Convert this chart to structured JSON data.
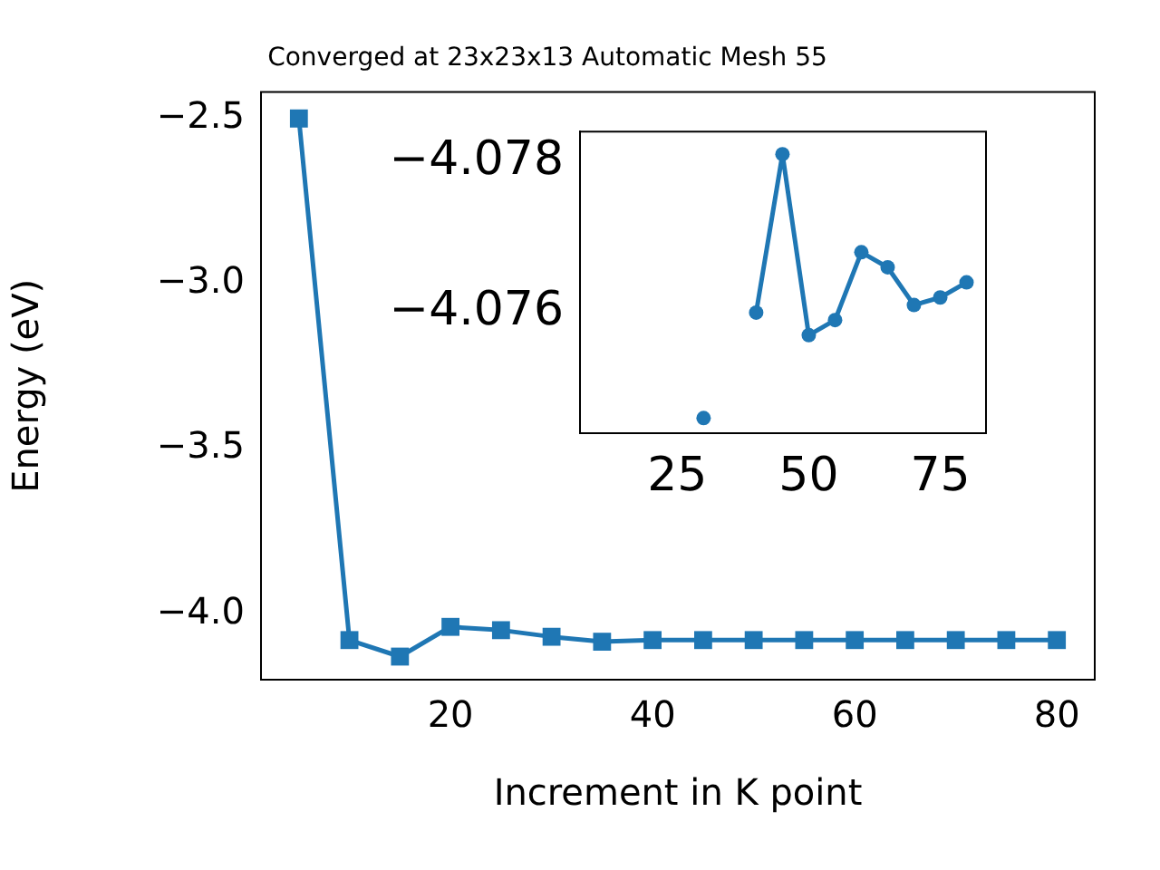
{
  "chart_data": [
    {
      "type": "line",
      "title": "Converged at 23x23x13 Automatic Mesh 55",
      "xlabel": "Increment in K point",
      "ylabel": "Energy (eV)",
      "x": [
        5,
        10,
        15,
        20,
        25,
        30,
        35,
        40,
        45,
        50,
        55,
        60,
        65,
        70,
        75,
        80
      ],
      "series": [
        {
          "color": "#1f77b4",
          "values": [
            -2.5,
            -4.08,
            -4.13,
            -4.04,
            -4.05,
            -4.07,
            -4.085,
            -4.08,
            -4.08,
            -4.08,
            -4.08,
            -4.08,
            -4.08,
            -4.08,
            -4.08,
            -4.08
          ]
        }
      ],
      "xlim": [
        1.25,
        83.75
      ],
      "xticks": [
        20,
        40,
        60,
        80
      ],
      "ylim": [
        -4.2,
        -2.42
      ],
      "yticks": [
        {
          "value": -2.5,
          "label": "−2.5"
        },
        {
          "value": -3.0,
          "label": "−3.0"
        },
        {
          "value": -3.5,
          "label": "−3.5"
        },
        {
          "value": -4.0,
          "label": "−4.0"
        }
      ],
      "marker": "square",
      "grid": false,
      "legend": false
    },
    {
      "type": "line",
      "x": [
        30,
        35,
        40,
        45,
        50,
        55,
        60,
        65,
        70,
        75,
        80
      ],
      "series": [
        {
          "color": "#1f77b4",
          "values": [
            -4.0746,
            null,
            -4.076,
            -4.0781,
            -4.0757,
            -4.0759,
            -4.0768,
            -4.0766,
            -4.0761,
            -4.0762,
            -4.0764
          ]
        }
      ],
      "xlim": [
        6.5,
        83.7
      ],
      "xticks": [
        25,
        50,
        75
      ],
      "ylim": [
        -4.0744,
        -4.0784
      ],
      "yticks": [
        {
          "value": -4.078,
          "label": "−4.078"
        },
        {
          "value": -4.076,
          "label": "−4.076"
        }
      ],
      "marker": "circle",
      "grid": false,
      "legend": false
    }
  ]
}
